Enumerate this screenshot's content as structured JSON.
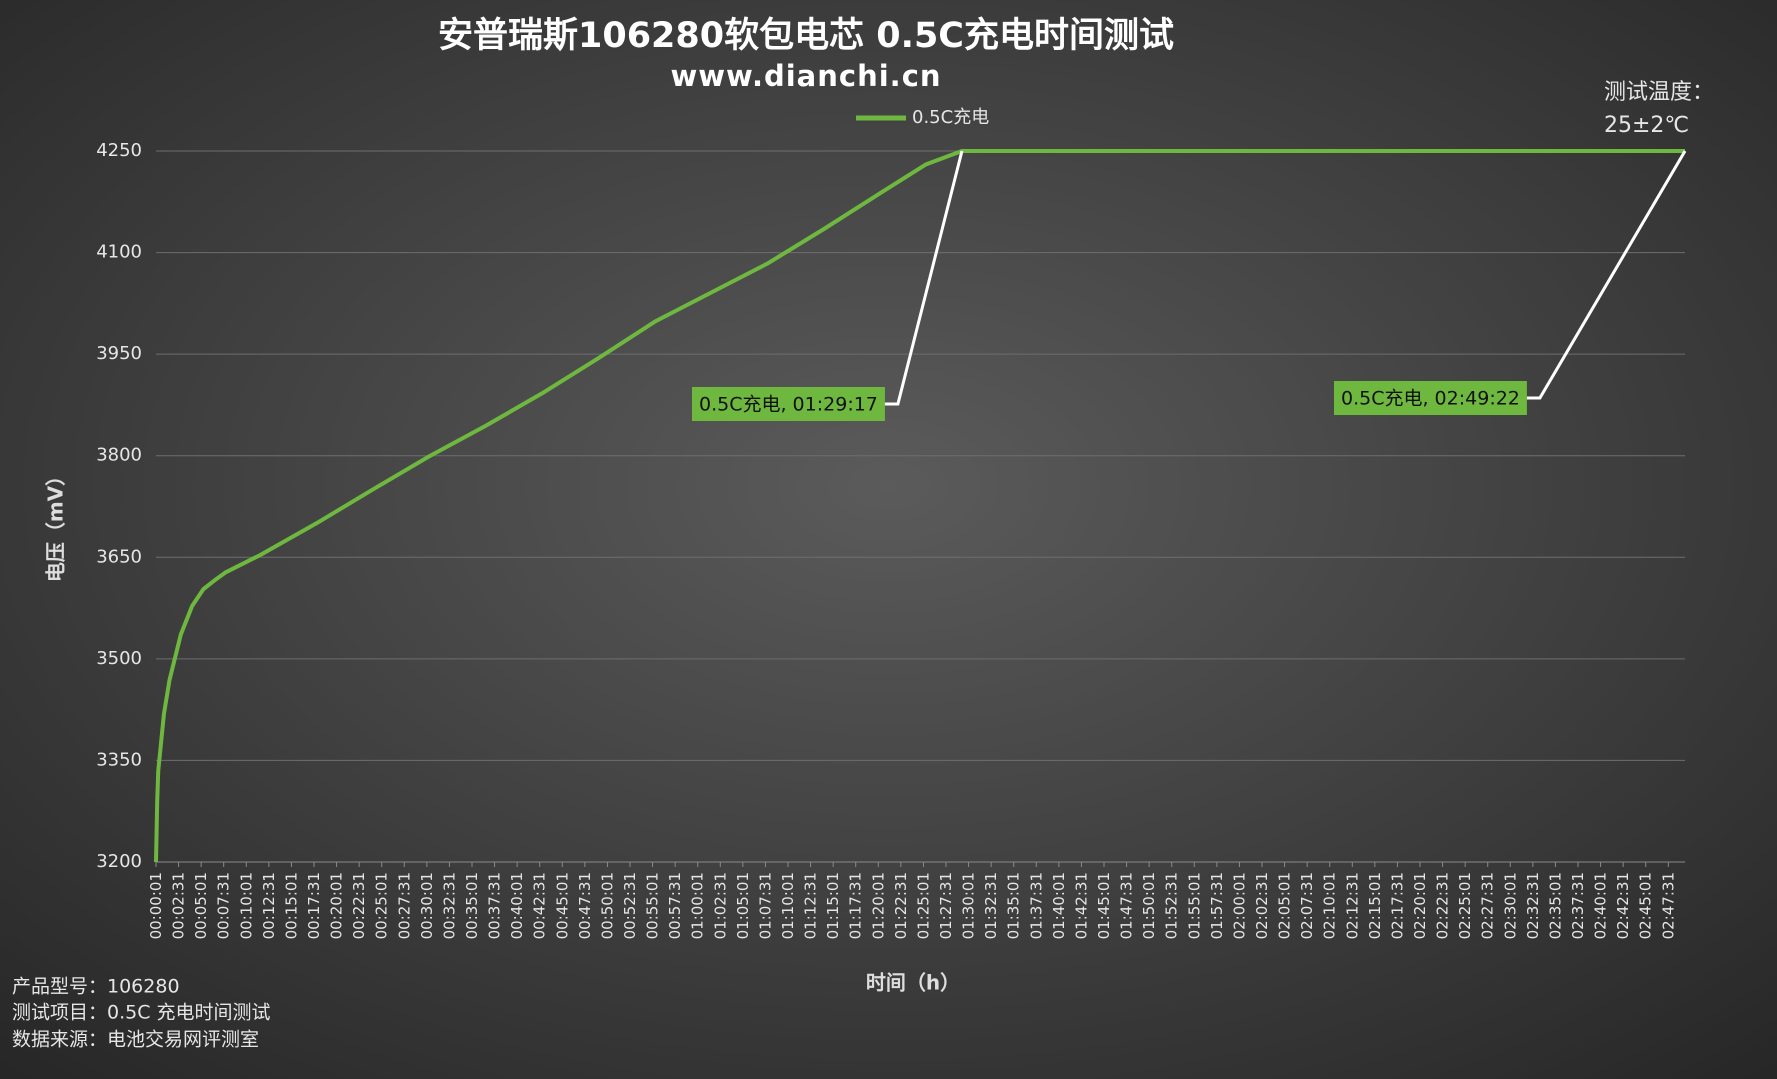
{
  "chart_data": {
    "type": "line",
    "title": "安普瑞斯106280软包电芯 0.5C充电时间测试",
    "subtitle": "www.dianchi.cn",
    "y_label": "电压（mV）",
    "x_label": "时间（h）",
    "note": [
      "测试温度：",
      "25±2℃"
    ],
    "footer": [
      "产品型号：106280",
      "测试项目：0.5C 充电时间测试",
      "数据来源：电池交易网评测室"
    ],
    "legend": "top",
    "grid": true,
    "series": [
      {
        "name": "0.5C充电",
        "color": "#6fb83f",
        "x": [
          1,
          9,
          16,
          54,
          91,
          166,
          241,
          316,
          391,
          466,
          691,
          1066,
          1441,
          1816,
          2191,
          2566,
          2941,
          3316,
          3691,
          4066,
          4441,
          4816,
          5116,
          5357,
          10162
        ],
        "values": [
          3200,
          3290,
          3335,
          3419,
          3469,
          3536,
          3578,
          3603,
          3616,
          3628,
          3653,
          3700,
          3750,
          3799,
          3844,
          3892,
          3944,
          3998,
          4041,
          4084,
          4135,
          4188,
          4230,
          4250,
          4250
        ]
      }
    ],
    "annotations": [
      {
        "text": "0.5C充电, 01:29:17",
        "x": 5357,
        "y": 4250
      },
      {
        "text": "0.5C充电, 02:49:22",
        "x": 10162,
        "y": 4250
      }
    ],
    "ylim": [
      3200,
      4250
    ],
    "yticks": [
      3200,
      3350,
      3500,
      3650,
      3800,
      3950,
      4100,
      4250
    ],
    "xlim": [
      1,
      10162
    ],
    "xticks": [
      {
        "value": 1,
        "label": "00:00:01"
      },
      {
        "value": 151,
        "label": "00:02:31"
      },
      {
        "value": 301,
        "label": "00:05:01"
      },
      {
        "value": 451,
        "label": "00:07:31"
      },
      {
        "value": 601,
        "label": "00:10:01"
      },
      {
        "value": 751,
        "label": "00:12:31"
      },
      {
        "value": 901,
        "label": "00:15:01"
      },
      {
        "value": 1051,
        "label": "00:17:31"
      },
      {
        "value": 1201,
        "label": "00:20:01"
      },
      {
        "value": 1351,
        "label": "00:22:31"
      },
      {
        "value": 1501,
        "label": "00:25:01"
      },
      {
        "value": 1651,
        "label": "00:27:31"
      },
      {
        "value": 1801,
        "label": "00:30:01"
      },
      {
        "value": 1951,
        "label": "00:32:31"
      },
      {
        "value": 2101,
        "label": "00:35:01"
      },
      {
        "value": 2251,
        "label": "00:37:31"
      },
      {
        "value": 2401,
        "label": "00:40:01"
      },
      {
        "value": 2551,
        "label": "00:42:31"
      },
      {
        "value": 2701,
        "label": "00:45:01"
      },
      {
        "value": 2851,
        "label": "00:47:31"
      },
      {
        "value": 3001,
        "label": "00:50:01"
      },
      {
        "value": 3151,
        "label": "00:52:31"
      },
      {
        "value": 3301,
        "label": "00:55:01"
      },
      {
        "value": 3451,
        "label": "00:57:31"
      },
      {
        "value": 3601,
        "label": "01:00:01"
      },
      {
        "value": 3751,
        "label": "01:02:31"
      },
      {
        "value": 3901,
        "label": "01:05:01"
      },
      {
        "value": 4051,
        "label": "01:07:31"
      },
      {
        "value": 4201,
        "label": "01:10:01"
      },
      {
        "value": 4351,
        "label": "01:12:31"
      },
      {
        "value": 4501,
        "label": "01:15:01"
      },
      {
        "value": 4651,
        "label": "01:17:31"
      },
      {
        "value": 4801,
        "label": "01:20:01"
      },
      {
        "value": 4951,
        "label": "01:22:31"
      },
      {
        "value": 5101,
        "label": "01:25:01"
      },
      {
        "value": 5251,
        "label": "01:27:31"
      },
      {
        "value": 5401,
        "label": "01:30:01"
      },
      {
        "value": 5551,
        "label": "01:32:31"
      },
      {
        "value": 5701,
        "label": "01:35:01"
      },
      {
        "value": 5851,
        "label": "01:37:31"
      },
      {
        "value": 6001,
        "label": "01:40:01"
      },
      {
        "value": 6151,
        "label": "01:42:31"
      },
      {
        "value": 6301,
        "label": "01:45:01"
      },
      {
        "value": 6451,
        "label": "01:47:31"
      },
      {
        "value": 6601,
        "label": "01:50:01"
      },
      {
        "value": 6751,
        "label": "01:52:31"
      },
      {
        "value": 6901,
        "label": "01:55:01"
      },
      {
        "value": 7051,
        "label": "01:57:31"
      },
      {
        "value": 7201,
        "label": "02:00:01"
      },
      {
        "value": 7351,
        "label": "02:02:31"
      },
      {
        "value": 7501,
        "label": "02:05:01"
      },
      {
        "value": 7651,
        "label": "02:07:31"
      },
      {
        "value": 7801,
        "label": "02:10:01"
      },
      {
        "value": 7951,
        "label": "02:12:31"
      },
      {
        "value": 8101,
        "label": "02:15:01"
      },
      {
        "value": 8251,
        "label": "02:17:31"
      },
      {
        "value": 8401,
        "label": "02:20:01"
      },
      {
        "value": 8551,
        "label": "02:22:31"
      },
      {
        "value": 8701,
        "label": "02:25:01"
      },
      {
        "value": 8851,
        "label": "02:27:31"
      },
      {
        "value": 9001,
        "label": "02:30:01"
      },
      {
        "value": 9151,
        "label": "02:32:31"
      },
      {
        "value": 9301,
        "label": "02:35:01"
      },
      {
        "value": 9451,
        "label": "02:37:31"
      },
      {
        "value": 9601,
        "label": "02:40:01"
      },
      {
        "value": 9751,
        "label": "02:42:31"
      },
      {
        "value": 9901,
        "label": "02:45:01"
      },
      {
        "value": 10051,
        "label": "02:47:31"
      }
    ]
  }
}
